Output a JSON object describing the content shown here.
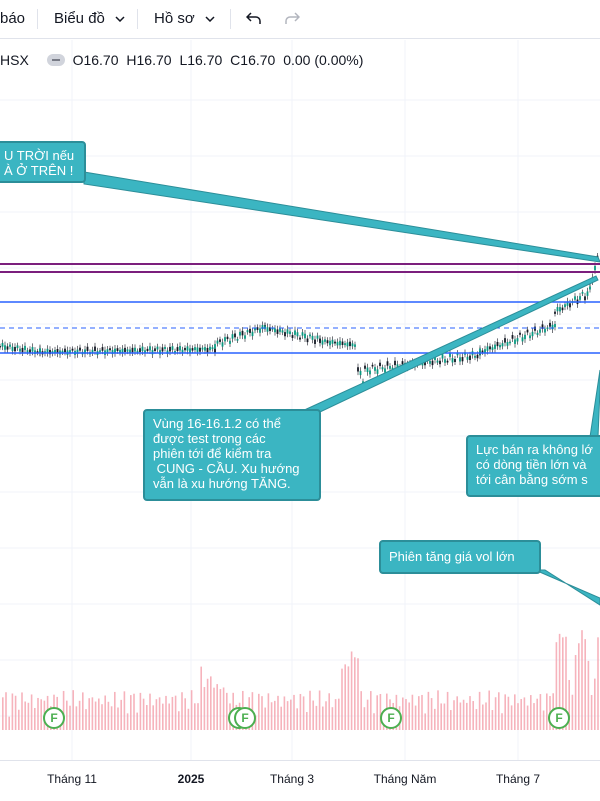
{
  "toolbar": {
    "alert_label": "báo",
    "chart_label": "Biểu đồ",
    "profile_label": "Hồ sơ",
    "undo_icon": "undo-icon",
    "redo_icon": "redo-icon"
  },
  "legend": {
    "exchange": "HSX",
    "open": "O16.70",
    "high": "H16.70",
    "low": "L16.70",
    "close": "C16.70",
    "change": "0.00 (0.00%)"
  },
  "callouts": {
    "top_left": "U TRỜI nếu\nÀ Ở TRÊN !",
    "zone": "Vùng 16-16.1.2 có thể\nđược test trong các\nphiên tới để kiểm tra\n CUNG - CẦU. Xu hướng\nvẫn là xu hướng TĂNG.",
    "selling": "Lực bán ra không lớ\ncó dòng tiền lớn và\ntới cân bằng sớm s",
    "volume": "Phiên tăng giá vol lớn"
  },
  "x_axis": {
    "labels": [
      "Tháng 11",
      "2025",
      "Tháng 3",
      "Tháng Năm",
      "Tháng 7"
    ]
  },
  "markers": {
    "dividend_badge": "F"
  },
  "colors": {
    "up_candle": "#089981",
    "callout_bg": "#3bb5c2",
    "purple_line": "#7b1f7d",
    "blue_line": "#2962ff",
    "volume": "#f5a6b0"
  }
}
